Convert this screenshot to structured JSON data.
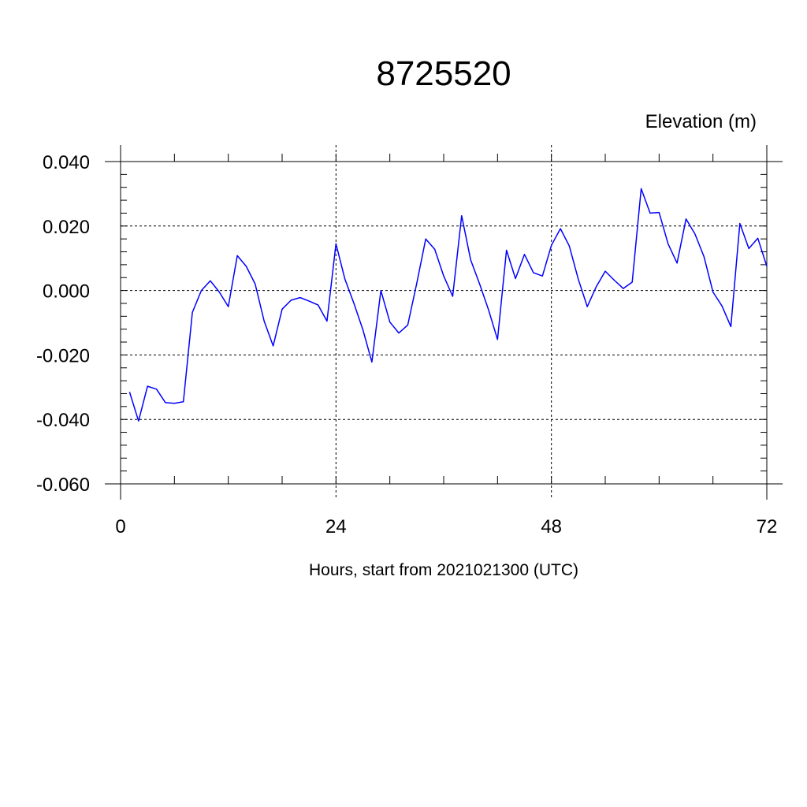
{
  "chart_data": {
    "type": "line",
    "title": "8725520",
    "subtitle": "Elevation (m)",
    "xlabel": "Hours, start from 2021021300 (UTC)",
    "ylabel": "",
    "xlim": [
      0,
      72
    ],
    "ylim": [
      -0.06,
      0.04
    ],
    "grid": true,
    "x_ticks": [
      0,
      24,
      48,
      72
    ],
    "x_tick_labels": [
      "0",
      "24",
      "48",
      "72"
    ],
    "y_ticks": [
      0.04,
      0.02,
      0.0,
      -0.02,
      -0.04,
      -0.06
    ],
    "y_tick_labels": [
      "0.040",
      "0.020",
      "0.000",
      "-0.020",
      "-0.040",
      "-0.060"
    ],
    "series": [
      {
        "color": "#0000ff",
        "x": [
          1,
          2,
          3,
          4,
          5,
          6,
          7,
          8,
          9,
          10,
          11,
          12,
          13,
          14,
          15,
          16,
          17,
          18,
          19,
          20,
          21,
          22,
          23,
          24,
          25,
          26,
          27,
          28,
          29,
          30,
          31,
          32,
          33,
          34,
          35,
          36,
          37,
          38,
          39,
          40,
          41,
          42,
          43,
          44,
          45,
          46,
          47,
          48,
          49,
          50,
          51,
          52,
          53,
          54,
          55,
          56,
          57,
          58,
          59,
          60,
          61,
          62,
          63,
          64,
          65,
          66,
          67,
          68,
          69,
          70,
          71,
          72
        ],
        "values": [
          -0.0315,
          -0.0405,
          -0.0297,
          -0.0306,
          -0.0348,
          -0.035,
          -0.0345,
          -0.0068,
          0.0,
          0.003,
          -0.0005,
          -0.005,
          0.0108,
          0.0075,
          0.002,
          -0.0095,
          -0.0172,
          -0.0058,
          -0.003,
          -0.0022,
          -0.0033,
          -0.0045,
          -0.0095,
          0.0145,
          0.0035,
          -0.004,
          -0.0122,
          -0.0222,
          0.0,
          -0.0098,
          -0.0132,
          -0.0107,
          0.0022,
          0.016,
          0.0128,
          0.0045,
          -0.0018,
          0.0232,
          0.0095,
          0.002,
          -0.006,
          -0.0152,
          0.0125,
          0.0037,
          0.0112,
          0.0055,
          0.0045,
          0.014,
          0.0192,
          0.0138,
          0.0035,
          -0.005,
          0.0012,
          0.006,
          0.0032,
          0.0006,
          0.0026,
          0.0316,
          0.024,
          0.0242,
          0.0145,
          0.0085,
          0.0222,
          0.0175,
          0.0105,
          -0.0005,
          -0.0048,
          -0.0112,
          0.0208,
          0.013,
          0.0162,
          0.0075
        ]
      }
    ]
  }
}
